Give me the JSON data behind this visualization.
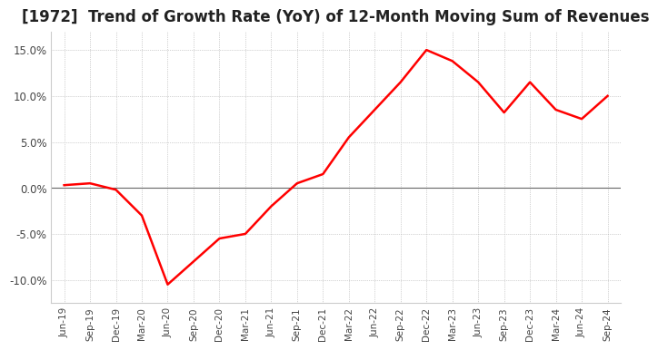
{
  "title": "[1972]  Trend of Growth Rate (YoY) of 12-Month Moving Sum of Revenues",
  "title_fontsize": 12,
  "line_color": "#ff0000",
  "background_color": "#ffffff",
  "plot_bg_color": "#ffffff",
  "grid_color": "#aaaaaa",
  "ylim": [
    -0.125,
    0.17
  ],
  "yticks": [
    -0.1,
    -0.05,
    0.0,
    0.05,
    0.1,
    0.15
  ],
  "ytick_labels": [
    "-10.0%",
    "-5.0%",
    "0.0%",
    "5.0%",
    "10.0%",
    "15.0%"
  ],
  "dates": [
    "Jun-19",
    "Sep-19",
    "Dec-19",
    "Mar-20",
    "Jun-20",
    "Sep-20",
    "Dec-20",
    "Mar-21",
    "Jun-21",
    "Sep-21",
    "Dec-21",
    "Mar-22",
    "Jun-22",
    "Sep-22",
    "Dec-22",
    "Mar-23",
    "Jun-23",
    "Sep-23",
    "Dec-23",
    "Mar-24",
    "Jun-24",
    "Sep-24"
  ],
  "values": [
    0.003,
    0.005,
    -0.002,
    -0.03,
    -0.105,
    -0.08,
    -0.055,
    -0.05,
    -0.02,
    0.005,
    0.015,
    0.055,
    0.085,
    0.115,
    0.15,
    0.138,
    0.115,
    0.082,
    0.115,
    0.085,
    0.075,
    0.1
  ]
}
